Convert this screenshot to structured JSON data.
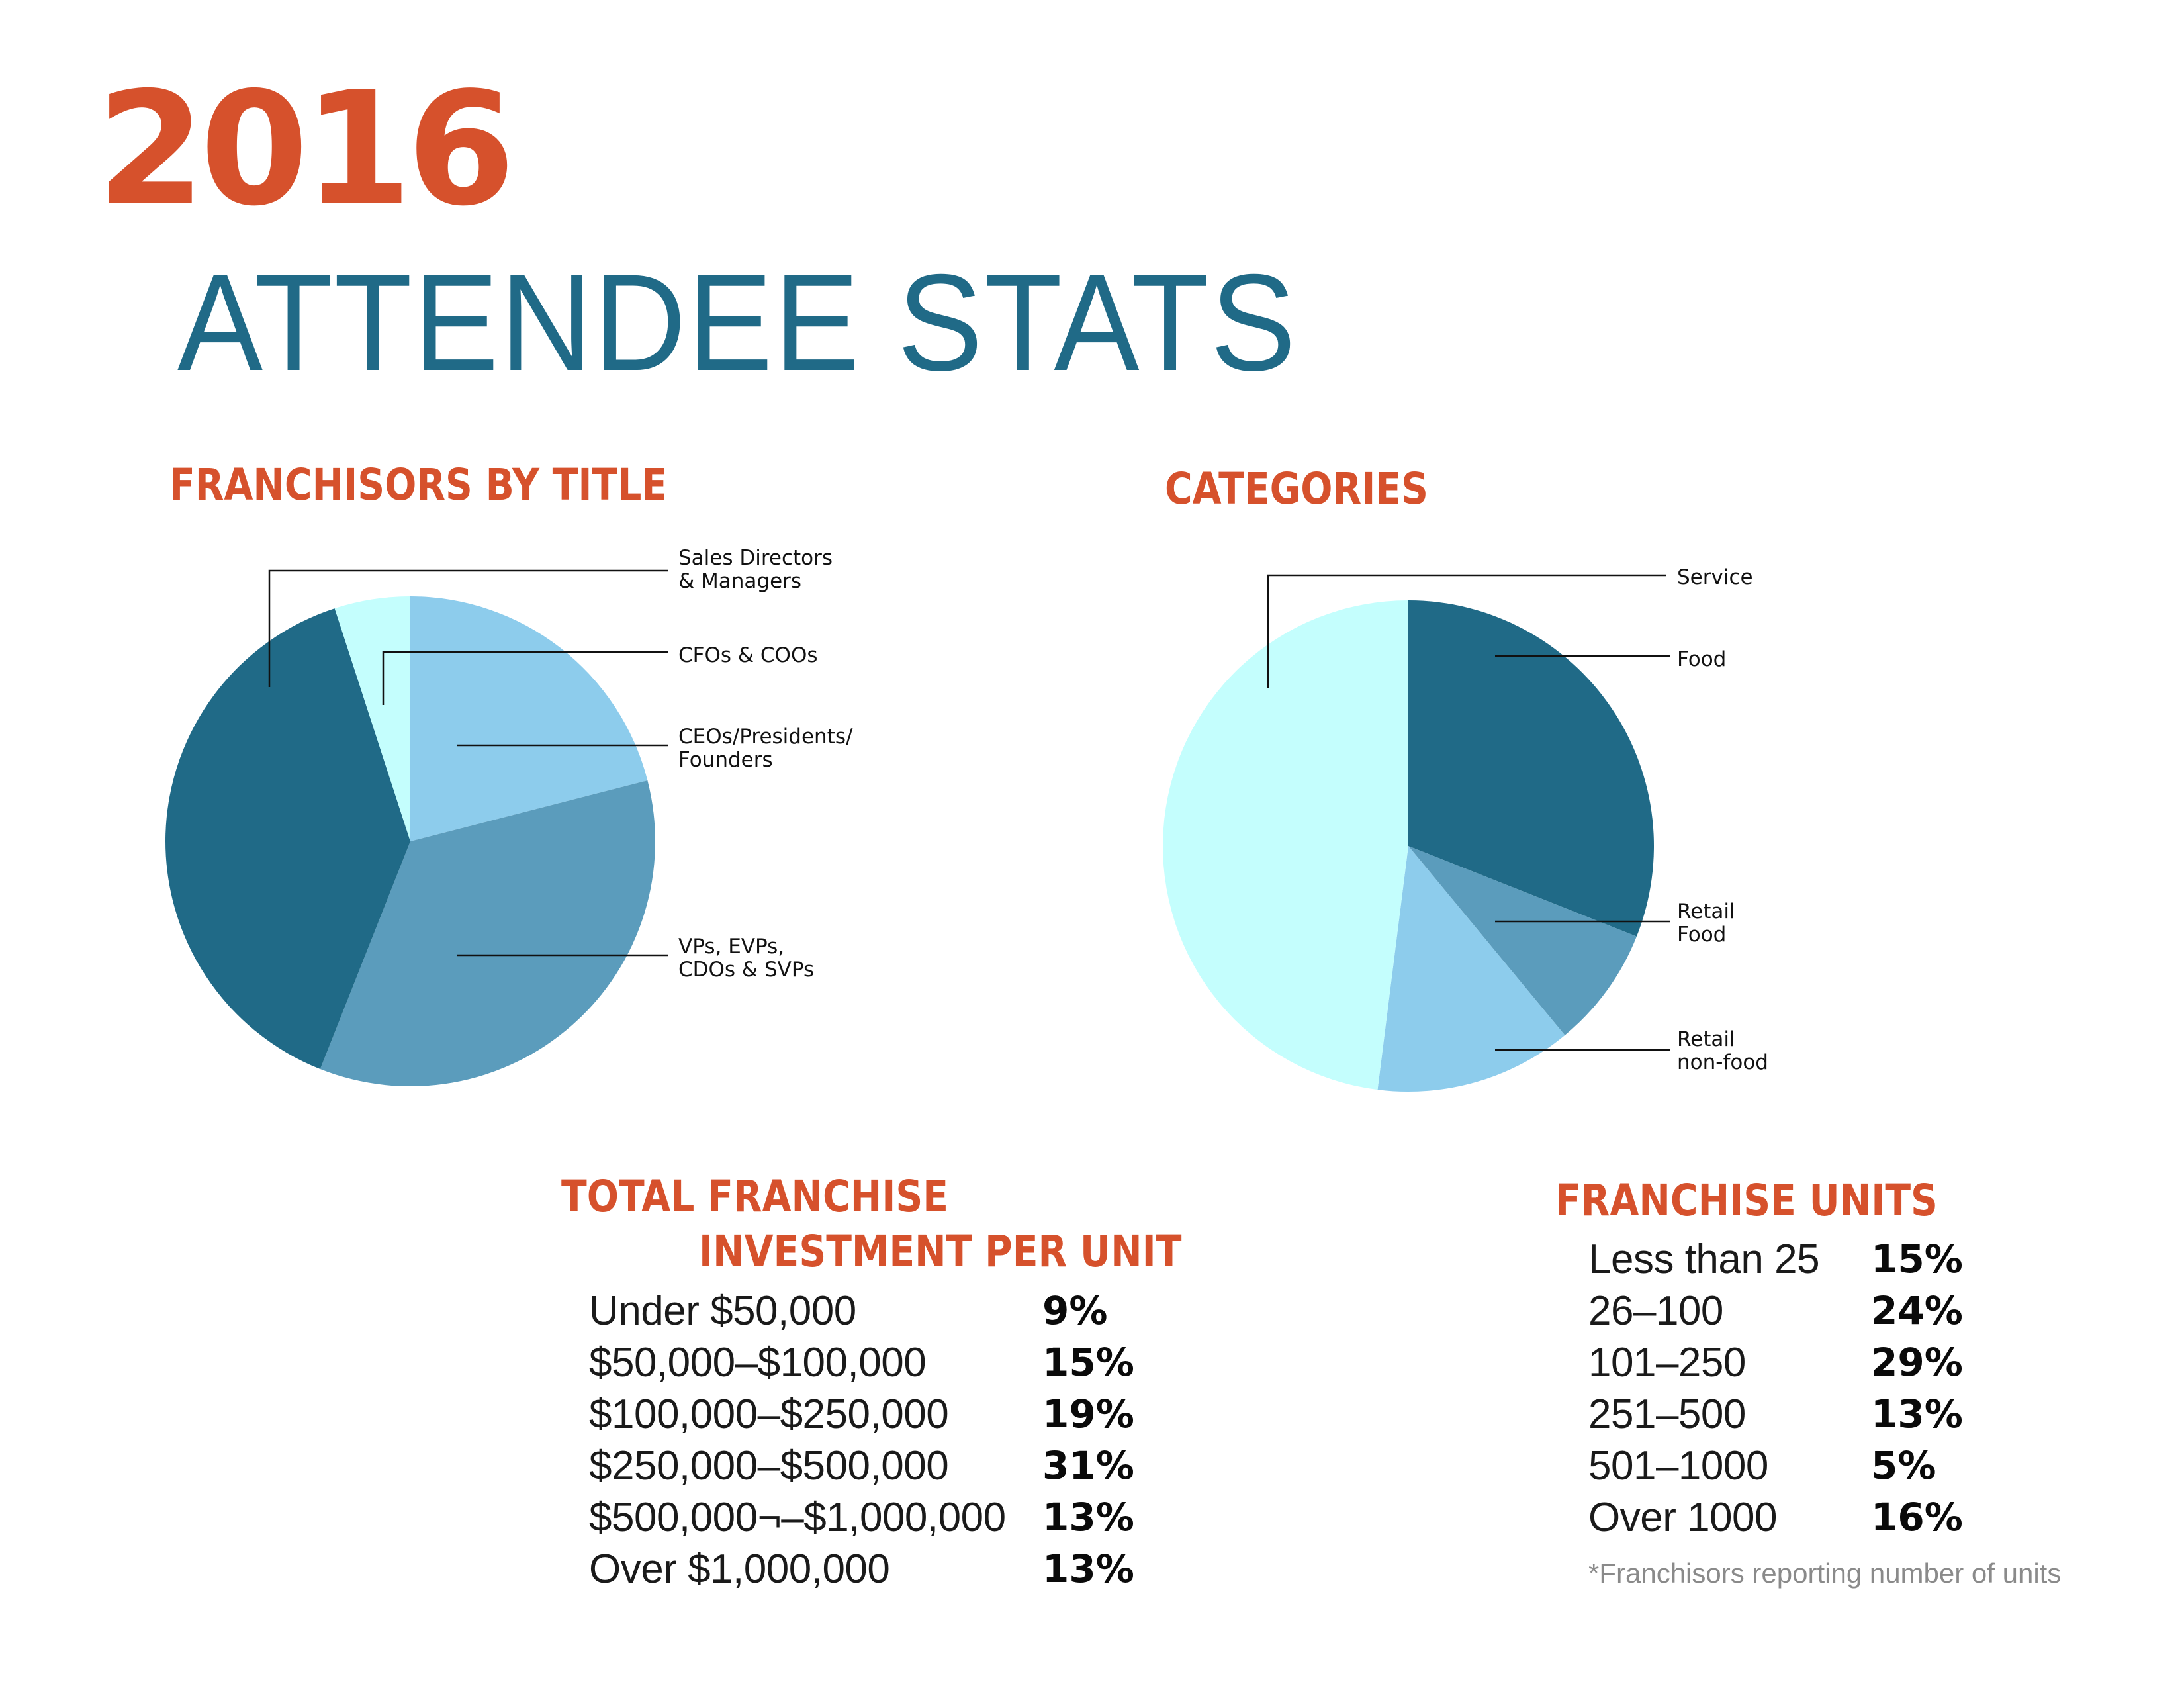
{
  "header": {
    "year": "2016",
    "title": "ATTENDEE STATS"
  },
  "colors": {
    "accent": "#D6512C",
    "title_teal": "#206A87",
    "slice_dark": "#206A87",
    "slice_medium": "#5B9CBC",
    "slice_light": "#8DCCEC",
    "slice_pale": "#C4FEFD"
  },
  "sections": {
    "franchisors_title": "FRANCHISORS BY TITLE",
    "categories_title": "CATEGORIES",
    "investment_title_line1": "TOTAL FRANCHISE",
    "investment_title_line2": "INVESTMENT PER UNIT",
    "units_title": "FRANCHISE UNITS"
  },
  "chart_data": [
    {
      "type": "pie",
      "title": "FRANCHISORS BY TITLE",
      "start": "12 o'clock, clockwise",
      "slices": [
        {
          "label_lines": [
            "CEOs/Presidents/",
            "Founders"
          ],
          "label": "CEOs/Presidents/Founders",
          "value": 21,
          "color": "#8DCCEC"
        },
        {
          "label_lines": [
            "VPs, EVPs,",
            "CDOs & SVPs"
          ],
          "label": "VPs, EVPs, CDOs & SVPs",
          "value": 35,
          "color": "#5B9CBC"
        },
        {
          "label_lines": [
            "Sales Directors",
            "& Managers"
          ],
          "label": "Sales Directors & Managers",
          "value": 39,
          "color": "#206A87"
        },
        {
          "label_lines": [
            "CFOs & COOs"
          ],
          "label": "CFOs & COOs",
          "value": 5,
          "color": "#C4FEFD"
        }
      ],
      "units": "percent (estimated from slice angles)"
    },
    {
      "type": "pie",
      "title": "CATEGORIES",
      "start": "12 o'clock, clockwise",
      "slices": [
        {
          "label_lines": [
            "Food"
          ],
          "label": "Food",
          "value": 31,
          "color": "#206A87"
        },
        {
          "label_lines": [
            "Retail",
            "Food"
          ],
          "label": "Retail Food",
          "value": 8,
          "color": "#5B9CBC"
        },
        {
          "label_lines": [
            "Retail",
            "non-food"
          ],
          "label": "Retail non-food",
          "value": 13,
          "color": "#8DCCEC"
        },
        {
          "label_lines": [
            "Service"
          ],
          "label": "Service",
          "value": 48,
          "color": "#C4FEFD"
        }
      ],
      "units": "percent (estimated from slice angles)"
    },
    {
      "type": "table",
      "title": "TOTAL FRANCHISE INVESTMENT PER UNIT",
      "rows": [
        {
          "label": "Under $50,000",
          "value": "9%"
        },
        {
          "label": "$50,000–$100,000",
          "value": "15%"
        },
        {
          "label": "$100,000–$250,000",
          "value": "19%"
        },
        {
          "label": "$250,000–$500,000",
          "value": "31%"
        },
        {
          "label": "$500,000¬–$1,000,000",
          "value": "13%"
        },
        {
          "label": "Over $1,000,000",
          "value": "13%"
        }
      ]
    },
    {
      "type": "table",
      "title": "FRANCHISE UNITS",
      "rows": [
        {
          "label": "Less than 25",
          "value": "15%"
        },
        {
          "label": "26–100",
          "value": "24%"
        },
        {
          "label": "101–250",
          "value": "29%"
        },
        {
          "label": "251–500",
          "value": "13%"
        },
        {
          "label": "501–1000",
          "value": "5%"
        },
        {
          "label": "Over 1000",
          "value": "16%"
        }
      ],
      "footnote": "*Franchisors reporting number of units"
    }
  ]
}
